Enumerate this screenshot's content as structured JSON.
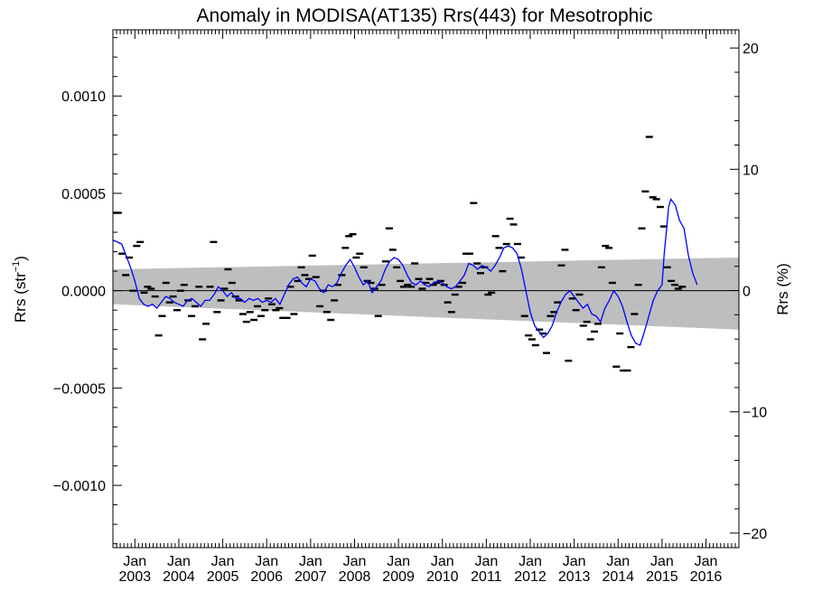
{
  "chart_data": {
    "type": "scatter",
    "title": "Anomaly in MODISA(AT135) Rrs(443) for Mesotrophic",
    "ylabel_left": "Rrs (str",
    "ylabel_left_sup": "−1",
    "ylabel_left_close": ")",
    "ylabel_right": "Rrs (%)",
    "x_range": [
      2002.5,
      2016.75
    ],
    "y_range": [
      -0.00132,
      0.00134
    ],
    "y_right_range": [
      -21.2,
      21.5
    ],
    "y_ticks_left": [
      "−0.0010",
      "−0.0005",
      "0.0000",
      "0.0005",
      "0.0010"
    ],
    "y_ticks_left_values": [
      -0.001,
      -0.0005,
      0.0,
      0.0005,
      0.001
    ],
    "y_ticks_right": [
      "−20",
      "−10",
      "0",
      "10",
      "20"
    ],
    "y_ticks_right_values": [
      -20,
      -10,
      0,
      10,
      20
    ],
    "x_tick_month": "Jan",
    "x_tick_years": [
      "2003",
      "2004",
      "2005",
      "2006",
      "2007",
      "2008",
      "2009",
      "2010",
      "2011",
      "2012",
      "2013",
      "2014",
      "2015",
      "2016"
    ],
    "x_tick_values": [
      2003,
      2004,
      2005,
      2006,
      2007,
      2008,
      2009,
      2010,
      2011,
      2012,
      2013,
      2014,
      2015,
      2016
    ],
    "band": {
      "color": "#bebebe",
      "start": [
        2002.5,
        0.00011,
        -7e-05
      ],
      "end": [
        2016.75,
        0.00017,
        -0.0002
      ]
    },
    "zero_line": 0.0,
    "monthly_anomalies": [
      [
        2002.54,
        0.0004
      ],
      [
        2002.62,
        0.0004
      ],
      [
        2002.71,
        0.00019
      ],
      [
        2002.79,
        8e-05
      ],
      [
        2002.87,
        0.00017
      ],
      [
        2002.96,
        0.0
      ],
      [
        2003.04,
        0.00023
      ],
      [
        2003.12,
        0.00025
      ],
      [
        2003.21,
        -1e-05
      ],
      [
        2003.29,
        2e-05
      ],
      [
        2003.37,
        1e-05
      ],
      [
        2003.46,
        -3e-05
      ],
      [
        2003.54,
        -0.00023
      ],
      [
        2003.62,
        -0.00013
      ],
      [
        2003.71,
        4e-05
      ],
      [
        2003.79,
        -6e-05
      ],
      [
        2003.87,
        -3e-05
      ],
      [
        2003.96,
        -0.0001
      ],
      [
        2004.04,
        0.0
      ],
      [
        2004.12,
        3e-05
      ],
      [
        2004.21,
        -5e-05
      ],
      [
        2004.29,
        -0.00013
      ],
      [
        2004.37,
        -8e-05
      ],
      [
        2004.46,
        2e-05
      ],
      [
        2004.54,
        -0.00025
      ],
      [
        2004.62,
        -0.00017
      ],
      [
        2004.71,
        2e-05
      ],
      [
        2004.79,
        0.00025
      ],
      [
        2004.87,
        -0.00011
      ],
      [
        2004.96,
        -5e-05
      ],
      [
        2005.04,
        1e-05
      ],
      [
        2005.12,
        0.00011
      ],
      [
        2005.21,
        4e-05
      ],
      [
        2005.29,
        -3e-05
      ],
      [
        2005.37,
        -5e-05
      ],
      [
        2005.46,
        -0.00012
      ],
      [
        2005.54,
        -0.00016
      ],
      [
        2005.62,
        -0.00011
      ],
      [
        2005.71,
        -0.00015
      ],
      [
        2005.79,
        -8e-05
      ],
      [
        2005.87,
        -0.00013
      ],
      [
        2005.96,
        -0.0001
      ],
      [
        2006.04,
        -4e-05
      ],
      [
        2006.12,
        -7e-05
      ],
      [
        2006.21,
        -0.0001
      ],
      [
        2006.29,
        -9e-05
      ],
      [
        2006.37,
        -0.00014
      ],
      [
        2006.46,
        -0.00014
      ],
      [
        2006.54,
        2e-05
      ],
      [
        2006.62,
        -0.00012
      ],
      [
        2006.71,
        5e-05
      ],
      [
        2006.79,
        0.00012
      ],
      [
        2006.87,
        8e-05
      ],
      [
        2006.96,
        6e-05
      ],
      [
        2007.04,
        0.00018
      ],
      [
        2007.12,
        7e-05
      ],
      [
        2007.21,
        -8e-05
      ],
      [
        2007.29,
        0.0
      ],
      [
        2007.37,
        -0.00011
      ],
      [
        2007.46,
        -0.00015
      ],
      [
        2007.54,
        -5e-05
      ],
      [
        2007.62,
        3e-05
      ],
      [
        2007.71,
        8e-05
      ],
      [
        2007.79,
        0.00022
      ],
      [
        2007.87,
        0.00028
      ],
      [
        2007.96,
        0.00029
      ],
      [
        2008.04,
        0.00017
      ],
      [
        2008.12,
        0.00019
      ],
      [
        2008.21,
        0.00012
      ],
      [
        2008.29,
        5e-05
      ],
      [
        2008.37,
        4e-05
      ],
      [
        2008.46,
        1e-05
      ],
      [
        2008.54,
        -0.00013
      ],
      [
        2008.62,
        3e-05
      ],
      [
        2008.71,
        0.00015
      ],
      [
        2008.79,
        0.00032
      ],
      [
        2008.87,
        0.00021
      ],
      [
        2008.96,
        0.00012
      ],
      [
        2009.04,
        5e-05
      ],
      [
        2009.12,
        2e-05
      ],
      [
        2009.21,
        3e-05
      ],
      [
        2009.29,
        2e-05
      ],
      [
        2009.37,
        0.00014
      ],
      [
        2009.46,
        6e-05
      ],
      [
        2009.54,
        1e-05
      ],
      [
        2009.62,
        4e-05
      ],
      [
        2009.71,
        6e-05
      ],
      [
        2009.79,
        3e-05
      ],
      [
        2009.87,
        4e-05
      ],
      [
        2009.96,
        5e-05
      ],
      [
        2010.04,
        3e-05
      ],
      [
        2010.12,
        -6e-05
      ],
      [
        2010.21,
        -0.00011
      ],
      [
        2010.29,
        -2e-05
      ],
      [
        2010.37,
        2e-05
      ],
      [
        2010.46,
        4e-05
      ],
      [
        2010.54,
        0.00019
      ],
      [
        2010.62,
        0.00019
      ],
      [
        2010.71,
        0.00045
      ],
      [
        2010.79,
        0.00014
      ],
      [
        2010.87,
        9e-05
      ],
      [
        2010.96,
        0.00012
      ],
      [
        2011.04,
        -2e-05
      ],
      [
        2011.12,
        -1e-05
      ],
      [
        2011.21,
        0.00028
      ],
      [
        2011.29,
        0.00022
      ],
      [
        2011.37,
        0.0001
      ],
      [
        2011.46,
        0.00024
      ],
      [
        2011.54,
        0.00037
      ],
      [
        2011.62,
        0.00034
      ],
      [
        2011.71,
        0.00024
      ],
      [
        2011.79,
        0.00017
      ],
      [
        2011.87,
        -0.00013
      ],
      [
        2011.96,
        -0.00023
      ],
      [
        2012.04,
        -0.00025
      ],
      [
        2012.12,
        -0.00028
      ],
      [
        2012.21,
        -0.0002
      ],
      [
        2012.29,
        -0.00022
      ],
      [
        2012.37,
        -0.00032
      ],
      [
        2012.46,
        -0.00013
      ],
      [
        2012.54,
        -0.00011
      ],
      [
        2012.62,
        -6e-05
      ],
      [
        2012.71,
        0.00013
      ],
      [
        2012.79,
        0.00021
      ],
      [
        2012.87,
        -0.00036
      ],
      [
        2012.96,
        -4e-05
      ],
      [
        2013.04,
        -0.0001
      ],
      [
        2013.12,
        -2e-05
      ],
      [
        2013.21,
        -0.00018
      ],
      [
        2013.29,
        -0.00016
      ],
      [
        2013.37,
        -0.00025
      ],
      [
        2013.46,
        -0.00021
      ],
      [
        2013.54,
        -0.00017
      ],
      [
        2013.62,
        0.00012
      ],
      [
        2013.71,
        0.00023
      ],
      [
        2013.79,
        0.00022
      ],
      [
        2013.87,
        4e-05
      ],
      [
        2013.96,
        -0.00039
      ],
      [
        2014.04,
        -0.00022
      ],
      [
        2014.12,
        -0.00041
      ],
      [
        2014.21,
        -0.00041
      ],
      [
        2014.29,
        -0.00029
      ],
      [
        2014.37,
        -0.00012
      ],
      [
        2014.46,
        3e-05
      ],
      [
        2014.54,
        0.00032
      ],
      [
        2014.62,
        0.00051
      ],
      [
        2014.71,
        0.00079
      ],
      [
        2014.79,
        0.00048
      ],
      [
        2014.87,
        0.00047
      ],
      [
        2014.96,
        0.00043
      ],
      [
        2015.04,
        0.00033
      ],
      [
        2015.12,
        0.00012
      ],
      [
        2015.21,
        5e-05
      ],
      [
        2015.29,
        3e-05
      ],
      [
        2015.37,
        1e-05
      ],
      [
        2015.46,
        2e-05
      ]
    ],
    "anomaly_line_color": "#0000ff",
    "smoothed_anomaly": [
      [
        2002.5,
        0.00026
      ],
      [
        2002.7,
        0.00024
      ],
      [
        2002.8,
        0.00018
      ],
      [
        2002.9,
        0.00012
      ],
      [
        2003.0,
        5e-05
      ],
      [
        2003.1,
        -4e-05
      ],
      [
        2003.2,
        -7e-05
      ],
      [
        2003.3,
        -8e-05
      ],
      [
        2003.4,
        -7e-05
      ],
      [
        2003.5,
        -9e-05
      ],
      [
        2003.6,
        -6e-05
      ],
      [
        2003.7,
        -3e-05
      ],
      [
        2003.8,
        -4e-05
      ],
      [
        2003.9,
        -6e-05
      ],
      [
        2004.0,
        -7e-05
      ],
      [
        2004.1,
        -8e-05
      ],
      [
        2004.2,
        -5e-05
      ],
      [
        2004.3,
        -4e-05
      ],
      [
        2004.4,
        -6e-05
      ],
      [
        2004.5,
        -8e-05
      ],
      [
        2004.6,
        -5e-05
      ],
      [
        2004.7,
        -5e-05
      ],
      [
        2004.8,
        -2e-05
      ],
      [
        2004.9,
        2e-05
      ],
      [
        2005.0,
        0.0
      ],
      [
        2005.1,
        -3e-05
      ],
      [
        2005.2,
        -1e-05
      ],
      [
        2005.3,
        -4e-05
      ],
      [
        2005.4,
        -4e-05
      ],
      [
        2005.5,
        -6e-05
      ],
      [
        2005.6,
        -4e-05
      ],
      [
        2005.7,
        -5e-05
      ],
      [
        2005.8,
        -4e-05
      ],
      [
        2005.9,
        -6e-05
      ],
      [
        2006.0,
        -5e-05
      ],
      [
        2006.1,
        -6e-05
      ],
      [
        2006.2,
        -4e-05
      ],
      [
        2006.3,
        -7e-05
      ],
      [
        2006.4,
        -2e-05
      ],
      [
        2006.5,
        3e-05
      ],
      [
        2006.6,
        6e-05
      ],
      [
        2006.7,
        7e-05
      ],
      [
        2006.8,
        4e-05
      ],
      [
        2006.9,
        2e-05
      ],
      [
        2007.0,
        6e-05
      ],
      [
        2007.1,
        5e-05
      ],
      [
        2007.2,
        1e-05
      ],
      [
        2007.3,
        -1e-05
      ],
      [
        2007.4,
        3e-05
      ],
      [
        2007.5,
        2e-05
      ],
      [
        2007.6,
        4e-05
      ],
      [
        2007.7,
        9e-05
      ],
      [
        2007.8,
        0.00013
      ],
      [
        2007.9,
        0.00016
      ],
      [
        2008.0,
        0.00012
      ],
      [
        2008.1,
        7e-05
      ],
      [
        2008.2,
        3e-05
      ],
      [
        2008.3,
        5e-05
      ],
      [
        2008.4,
        -1e-05
      ],
      [
        2008.5,
        2e-05
      ],
      [
        2008.6,
        5e-05
      ],
      [
        2008.7,
        0.00011
      ],
      [
        2008.8,
        0.00015
      ],
      [
        2008.9,
        0.00017
      ],
      [
        2009.0,
        0.00016
      ],
      [
        2009.1,
        0.00013
      ],
      [
        2009.2,
        8e-05
      ],
      [
        2009.3,
        4e-05
      ],
      [
        2009.4,
        3e-05
      ],
      [
        2009.5,
        5e-05
      ],
      [
        2009.6,
        3e-05
      ],
      [
        2009.7,
        2e-05
      ],
      [
        2009.8,
        4e-05
      ],
      [
        2009.9,
        5e-05
      ],
      [
        2010.0,
        4e-05
      ],
      [
        2010.1,
        2e-05
      ],
      [
        2010.2,
        1e-05
      ],
      [
        2010.3,
        2e-05
      ],
      [
        2010.4,
        5e-05
      ],
      [
        2010.5,
        8e-05
      ],
      [
        2010.6,
        0.00014
      ],
      [
        2010.7,
        0.00013
      ],
      [
        2010.8,
        0.00011
      ],
      [
        2010.9,
        0.00013
      ],
      [
        2011.0,
        0.00012
      ],
      [
        2011.1,
        0.0001
      ],
      [
        2011.2,
        0.00013
      ],
      [
        2011.3,
        0.00017
      ],
      [
        2011.4,
        0.00022
      ],
      [
        2011.5,
        0.00023
      ],
      [
        2011.6,
        0.00022
      ],
      [
        2011.7,
        0.00019
      ],
      [
        2011.8,
        0.00011
      ],
      [
        2011.9,
        0.0
      ],
      [
        2012.0,
        -0.00011
      ],
      [
        2012.1,
        -0.00018
      ],
      [
        2012.2,
        -0.00021
      ],
      [
        2012.3,
        -0.00024
      ],
      [
        2012.4,
        -0.00022
      ],
      [
        2012.5,
        -0.00018
      ],
      [
        2012.6,
        -0.00011
      ],
      [
        2012.7,
        -6e-05
      ],
      [
        2012.8,
        -2e-05
      ],
      [
        2012.9,
        0.0
      ],
      [
        2013.0,
        -3e-05
      ],
      [
        2013.1,
        -6e-05
      ],
      [
        2013.2,
        -9e-05
      ],
      [
        2013.3,
        -7e-05
      ],
      [
        2013.4,
        -0.00012
      ],
      [
        2013.5,
        -0.00013
      ],
      [
        2013.6,
        -0.00016
      ],
      [
        2013.7,
        -9e-05
      ],
      [
        2013.8,
        -5e-05
      ],
      [
        2013.9,
        0.0
      ],
      [
        2014.0,
        -3e-05
      ],
      [
        2014.1,
        -8e-05
      ],
      [
        2014.2,
        -0.00016
      ],
      [
        2014.3,
        -0.00023
      ],
      [
        2014.4,
        -0.00027
      ],
      [
        2014.5,
        -0.00028
      ],
      [
        2014.6,
        -0.00021
      ],
      [
        2014.7,
        -0.00013
      ],
      [
        2014.8,
        -5e-05
      ],
      [
        2014.9,
        0.0
      ],
      [
        2015.0,
        3e-05
      ],
      [
        2015.05,
        0.00019
      ],
      [
        2015.1,
        0.00031
      ],
      [
        2015.15,
        0.00043
      ],
      [
        2015.2,
        0.00047
      ],
      [
        2015.3,
        0.00044
      ],
      [
        2015.4,
        0.00036
      ],
      [
        2015.5,
        0.00032
      ],
      [
        2015.6,
        0.00018
      ],
      [
        2015.7,
        9e-05
      ],
      [
        2015.8,
        3e-05
      ]
    ]
  }
}
